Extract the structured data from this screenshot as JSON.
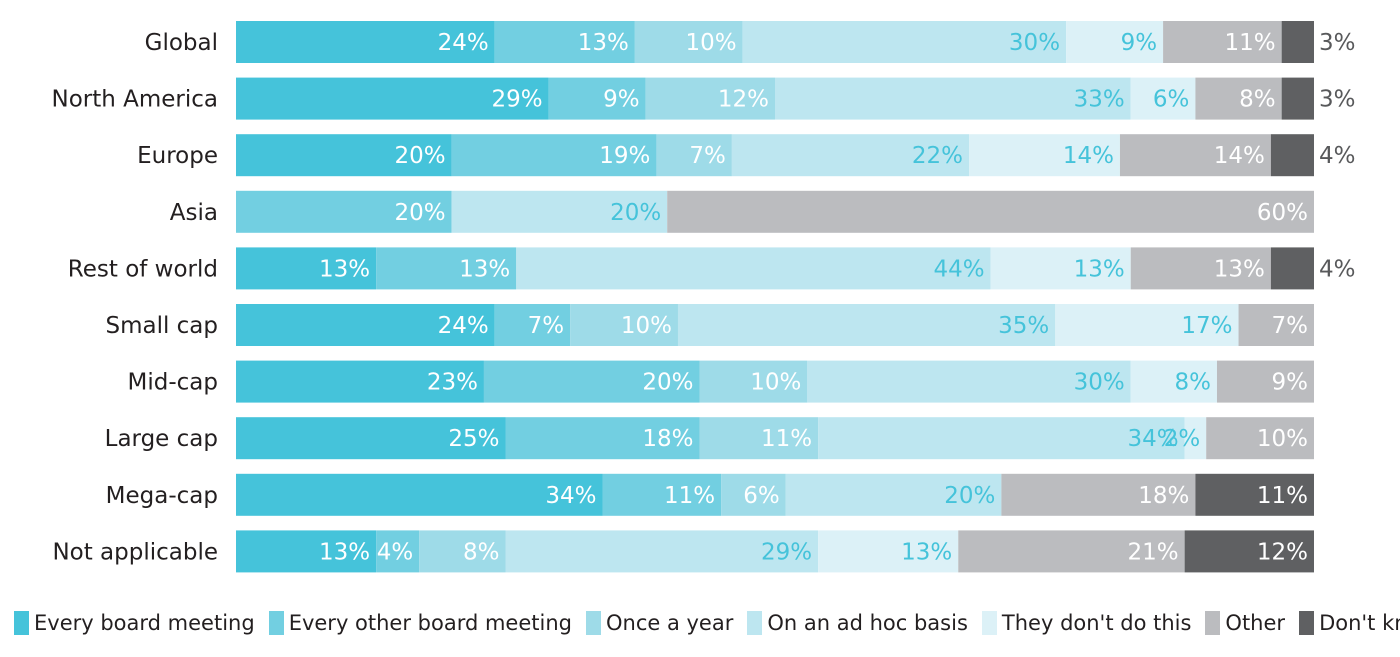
{
  "chart_data": {
    "type": "bar",
    "orientation": "horizontal",
    "stacked": true,
    "percent": true,
    "categories": [
      "Global",
      "North America",
      "Europe",
      "Asia",
      "Rest of world",
      "Small cap",
      "Mid-cap",
      "Large cap",
      "Mega-cap",
      "Not applicable"
    ],
    "series": [
      {
        "name": "Every board meeting",
        "color": "#45c3da",
        "label_color": "#ffffff",
        "values": [
          24,
          29,
          20,
          0,
          13,
          24,
          23,
          25,
          34,
          13
        ]
      },
      {
        "name": "Every other board meeting",
        "color": "#72cfe1",
        "label_color": "#ffffff",
        "values": [
          13,
          9,
          19,
          20,
          13,
          7,
          20,
          18,
          11,
          4
        ]
      },
      {
        "name": "Once a year",
        "color": "#9edbe8",
        "label_color": "#ffffff",
        "values": [
          10,
          12,
          7,
          0,
          0,
          10,
          10,
          11,
          6,
          8
        ]
      },
      {
        "name": "On an ad hoc basis",
        "color": "#bde6f0",
        "label_color": "#45c3da",
        "values": [
          30,
          33,
          22,
          20,
          44,
          35,
          30,
          34,
          20,
          29
        ]
      },
      {
        "name": "They don't do this",
        "color": "#dcf1f7",
        "label_color": "#45c3da",
        "values": [
          9,
          6,
          14,
          0,
          13,
          17,
          8,
          2,
          0,
          13
        ]
      },
      {
        "name": "Other",
        "color": "#bbbcbf",
        "label_color": "#ffffff",
        "values": [
          11,
          8,
          14,
          60,
          13,
          7,
          9,
          10,
          18,
          21
        ]
      },
      {
        "name": "Don't know",
        "color": "#5f6062",
        "label_color": "#ffffff",
        "values": [
          3,
          3,
          4,
          0,
          4,
          0,
          0,
          0,
          11,
          12
        ]
      }
    ],
    "outside_label_color": "#58595b",
    "label_suffix": "%",
    "legend_position": "bottom",
    "grid": false,
    "xlim": [
      0,
      100
    ]
  }
}
